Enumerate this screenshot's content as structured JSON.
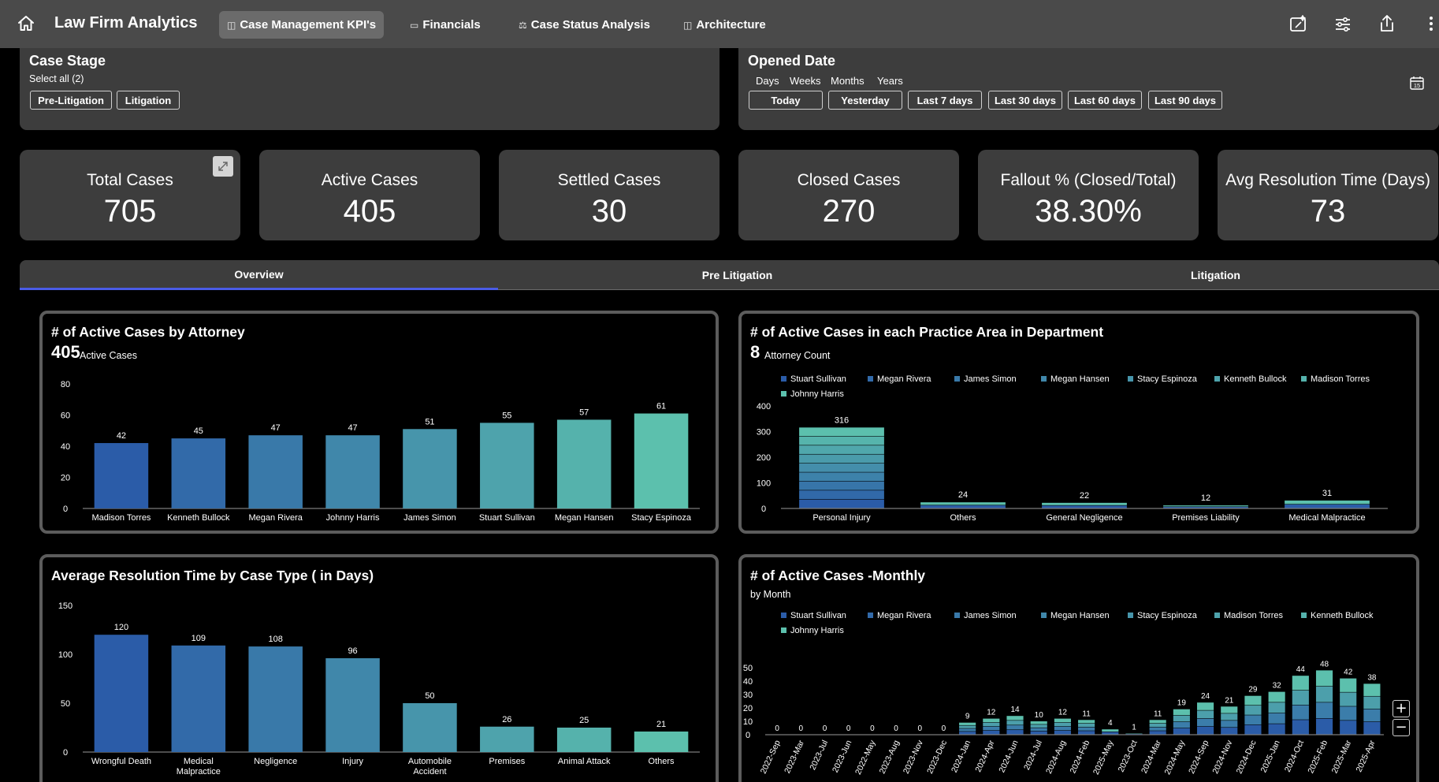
{
  "app": {
    "title": "Law Firm Analytics"
  },
  "nav": {
    "tabs": [
      {
        "label": "Case Management KPI's",
        "icon": "page-icon",
        "active": true
      },
      {
        "label": "Financials",
        "icon": "money-icon",
        "active": false
      },
      {
        "label": "Case Status Analysis",
        "icon": "scales-icon",
        "active": false
      },
      {
        "label": "Architecture",
        "icon": "page-icon",
        "active": false
      }
    ]
  },
  "filters": {
    "case_stage": {
      "title": "Case Stage",
      "select_all": "Select all (2)",
      "options": [
        "Pre-Litigation",
        "Litigation"
      ]
    },
    "opened_date": {
      "title": "Opened Date",
      "granularity": [
        "Days",
        "Weeks",
        "Months",
        "Years"
      ],
      "presets": [
        "Today",
        "Yesterday",
        "Last 7 days",
        "Last 30 days",
        "Last 60 days",
        "Last 90 days"
      ]
    }
  },
  "kpis": [
    {
      "label": "Total Cases",
      "value": "705"
    },
    {
      "label": "Active Cases",
      "value": "405"
    },
    {
      "label": "Settled Cases",
      "value": "30"
    },
    {
      "label": "Closed Cases",
      "value": "270"
    },
    {
      "label": "Fallout % (Closed/Total)",
      "value": "38.30%"
    },
    {
      "label": "Avg Resolution Time (Days)",
      "value": "73"
    }
  ],
  "section_tabs": [
    {
      "label": "Overview",
      "active": true
    },
    {
      "label": "Pre Litigation",
      "active": false
    },
    {
      "label": "Litigation",
      "active": false
    }
  ],
  "charts": {
    "attorney": {
      "title": "# of Active Cases by Attorney",
      "big_value": "405",
      "big_label": "Active Cases"
    },
    "practice": {
      "title": "# of Active Cases in each Practice Area in Department",
      "big_value": "8",
      "big_label": "Attorney Count"
    },
    "resolution": {
      "title": "Average Resolution Time by Case Type ( in Days)"
    },
    "monthly": {
      "title": "# of Active Cases -Monthly",
      "subtitle": "by Month"
    }
  },
  "colors": {
    "topbar": "#4a4a4a",
    "panel": "#3d3d3d",
    "accent_tab": "#4a5ce6",
    "bar_low": "#2b5ca8",
    "bar_high": "#5cc0ad"
  },
  "chart_data": [
    {
      "type": "bar",
      "title": "# of Active Cases by Attorney",
      "categories": [
        "Madison Torres",
        "Kenneth Bullock",
        "Megan Rivera",
        "Johnny Harris",
        "James Simon",
        "Stuart Sullivan",
        "Megan Hansen",
        "Stacy Espinoza"
      ],
      "values": [
        42,
        45,
        47,
        47,
        51,
        55,
        57,
        61
      ],
      "ylim": [
        0,
        80
      ],
      "yticks": [
        0,
        20,
        40,
        60,
        80
      ],
      "grid": false
    },
    {
      "type": "bar",
      "stacked": true,
      "title": "# of Active Cases in each Practice Area in Department",
      "categories": [
        "Personal Injury",
        "Others",
        "General Negligence",
        "Premises Liability",
        "Medical Malpractice"
      ],
      "values": [
        316,
        24,
        22,
        12,
        31
      ],
      "legend": [
        "Stuart Sullivan",
        "Megan Rivera",
        "James Simon",
        "Megan Hansen",
        "Stacy Espinoza",
        "Kenneth Bullock",
        "Madison Torres",
        "Johnny Harris"
      ],
      "legend_position": "top-left",
      "ylim": [
        0,
        400
      ],
      "yticks": [
        0,
        100,
        200,
        300,
        400
      ],
      "grid": false
    },
    {
      "type": "bar",
      "title": "Average Resolution Time by Case Type ( in Days)",
      "categories": [
        [
          "Wrongful Death"
        ],
        [
          "Medical",
          "Malpractice"
        ],
        [
          "Negligence"
        ],
        [
          "Injury"
        ],
        [
          "Automobile",
          "Accident"
        ],
        [
          "Premises"
        ],
        [
          "Animal Attack"
        ],
        [
          "Others"
        ]
      ],
      "values": [
        120,
        109,
        108,
        96,
        50,
        26,
        25,
        21
      ],
      "ylim": [
        0,
        150
      ],
      "yticks": [
        0,
        50,
        100,
        150
      ],
      "grid": false
    },
    {
      "type": "bar",
      "stacked": true,
      "title": "# of Active Cases -Monthly",
      "subtitle": "by Month",
      "categories": [
        "2022-Sep",
        "2023-Mar",
        "2023-Jul",
        "2023-Jun",
        "2022-May",
        "2023-Aug",
        "2023-Nov",
        "2023-Dec",
        "2024-Jan",
        "2024-Apr",
        "2024-Jun",
        "2024-Jul",
        "2024-Aug",
        "2024-Feb",
        "2025-May",
        "2023-Oct",
        "2024-Mar",
        "2024-May",
        "2024-Sep",
        "2024-Nov",
        "2024-Dec",
        "2025-Jan",
        "2024-Oct",
        "2025-Feb",
        "2025-Mar",
        "2025-Apr"
      ],
      "values": [
        0,
        0,
        0,
        0,
        0,
        0,
        0,
        0,
        9,
        12,
        14,
        10,
        12,
        11,
        4,
        1,
        11,
        19,
        24,
        21,
        29,
        32,
        44,
        48,
        42,
        38
      ],
      "legend": [
        "Stuart Sullivan",
        "Megan Rivera",
        "James Simon",
        "Megan Hansen",
        "Stacy Espinoza",
        "Madison Torres",
        "Kenneth Bullock",
        "Johnny Harris"
      ],
      "legend_position": "top-left",
      "ylim": [
        0,
        50
      ],
      "yticks": [
        0,
        10,
        20,
        30,
        40,
        50
      ],
      "grid": false
    }
  ]
}
